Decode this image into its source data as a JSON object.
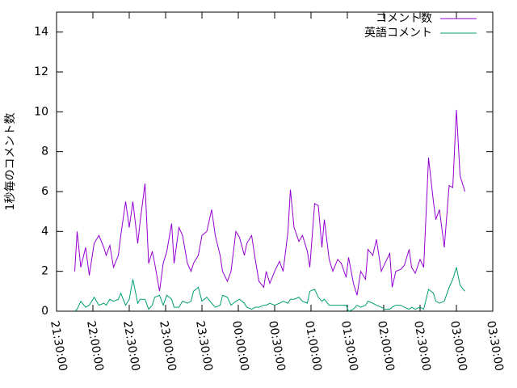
{
  "chart_data": {
    "type": "line",
    "ylabel": "1秒毎のコメント数",
    "x": [
      "21:45:00",
      "21:47:00",
      "21:50:00",
      "21:54:00",
      "21:57:00",
      "22:01:00",
      "22:05:00",
      "22:09:00",
      "22:11:00",
      "22:14:00",
      "22:17:00",
      "22:21:00",
      "22:23:00",
      "22:27:00",
      "22:30:00",
      "22:33:00",
      "22:37:00",
      "22:39:00",
      "22:43:00",
      "22:46:00",
      "22:49:00",
      "22:51:00",
      "22:55:00",
      "22:58:00",
      "23:01:00",
      "23:05:00",
      "23:07:00",
      "23:11:00",
      "23:14:00",
      "23:18:00",
      "23:21:00",
      "23:23:00",
      "23:27:00",
      "23:30:00",
      "23:34:00",
      "23:38:00",
      "23:41:00",
      "23:45:00",
      "23:47:00",
      "23:51:00",
      "23:54:00",
      "23:58:00",
      "00:01:00",
      "00:05:00",
      "00:07:00",
      "00:11:00",
      "00:14:00",
      "00:17:00",
      "00:21:00",
      "00:23:00",
      "00:26:00",
      "00:30:00",
      "00:34:00",
      "00:37:00",
      "00:41:00",
      "00:43:00",
      "00:46:00",
      "00:50:00",
      "00:53:00",
      "00:57:00",
      "00:59:00",
      "01:03:00",
      "01:06:00",
      "01:09:00",
      "01:11:00",
      "01:15:00",
      "01:18:00",
      "01:22:00",
      "01:25:00",
      "01:29:00",
      "01:31:00",
      "01:35:00",
      "01:38:00",
      "01:41:00",
      "01:45:00",
      "01:47:00",
      "01:51:00",
      "01:54:00",
      "01:58:00",
      "02:01:00",
      "02:05:00",
      "02:07:00",
      "02:10:00",
      "02:14:00",
      "02:17:00",
      "02:21:00",
      "02:23:00",
      "02:26:00",
      "02:30:00",
      "02:33:00",
      "02:37:00",
      "02:41:00",
      "02:43:00",
      "02:46:00",
      "02:50:00",
      "02:54:00",
      "02:57:00",
      "03:00:00",
      "03:03:00",
      "03:07:00"
    ],
    "series": [
      {
        "name": "コメント数",
        "color": "#9400d3",
        "values": [
          2,
          4,
          2.2,
          3.2,
          1.8,
          3.4,
          3.8,
          3.2,
          2.8,
          3.3,
          2.2,
          2.8,
          3.8,
          5.5,
          4.2,
          5.5,
          3.4,
          4.5,
          6.4,
          2.4,
          3.0,
          2.4,
          1.0,
          2.4,
          3.0,
          4.4,
          2.4,
          4.2,
          3.8,
          2.4,
          2.0,
          2.4,
          2.8,
          3.8,
          4.0,
          5.1,
          3.8,
          2.8,
          2.0,
          1.5,
          2.0,
          4.0,
          3.7,
          2.8,
          3.4,
          3.8,
          2.6,
          1.5,
          1.2,
          2.0,
          1.4,
          2.0,
          2.5,
          2.0,
          4.0,
          6.1,
          4.2,
          3.5,
          3.8,
          3.0,
          2.2,
          5.4,
          5.3,
          3.2,
          4.6,
          2.6,
          2.0,
          2.6,
          2.4,
          1.7,
          2.7,
          1.4,
          0.8,
          2.0,
          1.6,
          3.1,
          2.8,
          3.6,
          2.0,
          2.4,
          2.9,
          1.2,
          2.0,
          2.1,
          2.3,
          3.1,
          2.2,
          1.9,
          2.6,
          2.2,
          7.7,
          5.5,
          4.6,
          5.1,
          3.2,
          6.3,
          6.2,
          10.1,
          6.8,
          6.0
        ]
      },
      {
        "name": "英語コメント",
        "color": "#009e73",
        "values": [
          0,
          0.1,
          0.5,
          0.2,
          0.3,
          0.7,
          0.3,
          0.4,
          0.3,
          0.6,
          0.5,
          0.6,
          0.9,
          0.3,
          0.6,
          1.6,
          0.4,
          0.6,
          0.6,
          0.1,
          0.3,
          0.7,
          0.8,
          0.3,
          0.8,
          0.6,
          0.2,
          0.2,
          0.5,
          0.4,
          0.5,
          1.0,
          1.2,
          0.5,
          0.7,
          0.4,
          0.2,
          0.3,
          0.8,
          0.7,
          0.3,
          0.5,
          0.6,
          0.4,
          0.2,
          0.1,
          0.2,
          0.2,
          0.3,
          0.3,
          0.4,
          0.3,
          0.4,
          0.5,
          0.4,
          0.6,
          0.6,
          0.7,
          0.5,
          0.4,
          1.0,
          1.1,
          0.7,
          0.5,
          0.6,
          0.3,
          0.3,
          0.3,
          0.3,
          0.3,
          0.0,
          0.1,
          0.3,
          0.2,
          0.3,
          0.5,
          0.4,
          0.3,
          0.2,
          0.1,
          0.1,
          0.2,
          0.3,
          0.3,
          0.2,
          0.1,
          0.2,
          0.1,
          0.2,
          0.1,
          1.1,
          0.9,
          0.5,
          0.4,
          0.5,
          1.2,
          1.6,
          2.2,
          1.3,
          1.0
        ]
      }
    ],
    "xlim": [
      "21:30:00",
      "03:30:00"
    ],
    "xticks": [
      "21:30:00",
      "22:00:00",
      "22:30:00",
      "23:00:00",
      "23:30:00",
      "00:00:00",
      "00:30:00",
      "01:00:00",
      "01:30:00",
      "02:00:00",
      "02:30:00",
      "03:00:00",
      "03:30:00"
    ],
    "ylim": [
      0,
      15
    ],
    "yticks": [
      0,
      2,
      4,
      6,
      8,
      10,
      12,
      14
    ],
    "legend": "top-right"
  }
}
